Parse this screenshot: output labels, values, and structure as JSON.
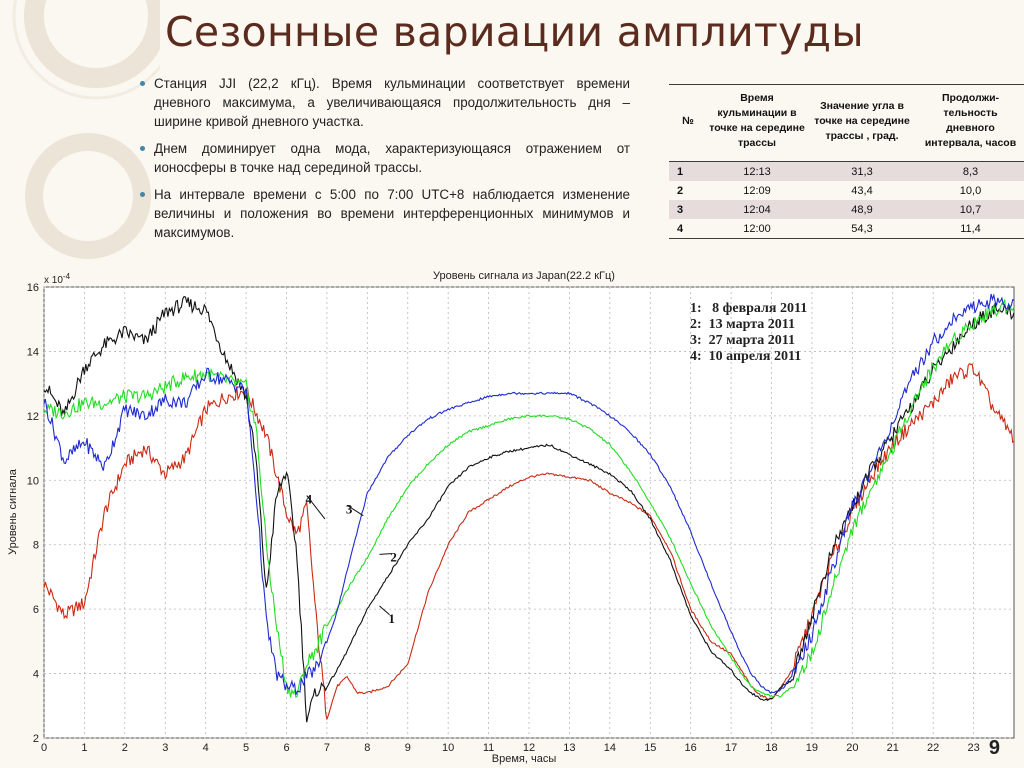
{
  "slide": {
    "title": "Сезонные вариации амплитуды",
    "page_number": "9",
    "accent_color": "#5b2b1e",
    "bullet_color": "#3f88a9"
  },
  "bullets": [
    "Станция JJI (22,2 кГц). Время кульминации соответствует времени дневного максимума, а увеличивающаяся продолжительность дня – ширине кривой дневного участка.",
    "Днем доминирует одна мода, характеризующаяся отражением от ионосферы в точке над серединой трассы.",
    "На интервале времени с 5:00 по 7:00 UTC+8 наблюдается изменение величины и положения во времени интерференционных минимумов и максимумов."
  ],
  "table": {
    "headers": [
      "№",
      "Время кульминации в точке на середине трассы",
      "Значение угла в точке на середине трассы , град.",
      "Продолжи-тельность дневного интервала, часов"
    ],
    "rows": [
      [
        "1",
        "12:13",
        "31,3",
        "8,3"
      ],
      [
        "2",
        "12:09",
        "43,4",
        "10,0"
      ],
      [
        "3",
        "12:04",
        "48,9",
        "10,7"
      ],
      [
        "4",
        "12:00",
        "54,3",
        "11,4"
      ]
    ]
  },
  "chart_data": {
    "type": "line",
    "title": "Уровень сигнала из Japan(22.2 кГц)",
    "xlabel": "Время, часы",
    "ylabel": "Уровень сигнала",
    "y_multiplier": "x 10",
    "y_exponent": "-4",
    "xlim": [
      0,
      24
    ],
    "ylim": [
      2,
      16
    ],
    "xticks": [
      0,
      1,
      2,
      3,
      4,
      5,
      6,
      7,
      8,
      9,
      10,
      11,
      12,
      13,
      14,
      15,
      16,
      17,
      18,
      19,
      20,
      21,
      22,
      23
    ],
    "yticks": [
      2,
      4,
      6,
      8,
      10,
      12,
      14,
      16
    ],
    "grid": true,
    "legend": [
      "1:   8 февраля 2011",
      "2:  13 марта 2011",
      "3:  27 марта 2011",
      "4:  10 апреля 2011"
    ],
    "series": [
      {
        "name": "1",
        "color": "#cc2a14",
        "x": [
          0,
          0.5,
          1,
          1.5,
          2,
          2.5,
          3,
          3.5,
          4,
          4.5,
          5,
          5.5,
          6,
          6.25,
          6.5,
          6.75,
          7,
          7.25,
          7.5,
          7.75,
          8,
          8.25,
          8.5,
          9,
          9.5,
          10,
          10.5,
          11,
          11.5,
          12,
          12.5,
          13,
          13.5,
          14,
          14.5,
          15,
          15.5,
          16,
          16.5,
          17,
          17.25,
          17.5,
          17.75,
          18,
          18.25,
          18.5,
          19,
          19.5,
          20,
          20.5,
          21,
          21.5,
          22,
          22.5,
          23,
          23.5,
          24
        ],
        "y": [
          6.8,
          5.8,
          6.2,
          9.0,
          10.5,
          11.0,
          10.2,
          10.7,
          12.2,
          12.6,
          12.8,
          11.4,
          9.0,
          8.3,
          9.2,
          5.5,
          2.6,
          3.6,
          3.9,
          3.4,
          3.4,
          3.5,
          3.6,
          4.3,
          6.5,
          8.0,
          9.0,
          9.4,
          9.8,
          10.1,
          10.2,
          10.1,
          10.0,
          9.6,
          9.3,
          8.9,
          7.8,
          6.0,
          5.0,
          4.6,
          4.1,
          3.6,
          3.3,
          3.2,
          3.6,
          4.1,
          5.8,
          7.6,
          9.0,
          10.2,
          11.1,
          11.8,
          12.4,
          13.2,
          13.5,
          12.2,
          11.3
        ]
      },
      {
        "name": "2",
        "color": "#111111",
        "x": [
          0,
          0.5,
          1,
          1.5,
          2,
          2.5,
          3,
          3.5,
          4,
          4.5,
          5,
          5.25,
          5.5,
          5.75,
          6,
          6.25,
          6.5,
          6.75,
          7,
          7.25,
          7.5,
          8,
          8.5,
          9,
          9.5,
          10,
          10.5,
          11,
          11.5,
          12,
          12.5,
          13,
          13.5,
          14,
          14.5,
          15,
          15.5,
          16,
          16.5,
          17,
          17.25,
          17.5,
          17.75,
          18,
          18.25,
          18.5,
          19,
          19.5,
          20,
          20.5,
          21,
          21.5,
          22,
          22.5,
          23,
          23.5,
          24
        ],
        "y": [
          13.0,
          12.0,
          13.5,
          14.2,
          14.6,
          14.3,
          15.2,
          15.5,
          15.3,
          13.8,
          12.6,
          10.6,
          6.5,
          9.5,
          10.3,
          7.8,
          2.6,
          3.5,
          3.6,
          4.1,
          4.7,
          6.0,
          7.0,
          8.0,
          8.8,
          9.8,
          10.4,
          10.7,
          10.9,
          11.0,
          11.1,
          10.8,
          10.5,
          10.2,
          9.7,
          8.8,
          7.5,
          5.8,
          4.7,
          4.1,
          3.7,
          3.4,
          3.2,
          3.2,
          3.6,
          3.8,
          5.8,
          7.8,
          9.2,
          10.4,
          11.4,
          12.4,
          13.4,
          14.2,
          14.9,
          15.3,
          15.2
        ]
      },
      {
        "name": "3",
        "color": "#22dd22",
        "x": [
          0,
          0.5,
          1,
          1.5,
          2,
          2.5,
          3,
          3.5,
          4,
          4.5,
          5,
          5.25,
          5.5,
          5.75,
          6,
          6.25,
          6.5,
          6.75,
          7,
          7.25,
          7.5,
          8,
          8.5,
          9,
          9.5,
          10,
          10.5,
          11,
          11.5,
          12,
          12.5,
          13,
          13.5,
          14,
          14.5,
          15,
          15.5,
          16,
          16.5,
          17,
          17.25,
          17.5,
          17.75,
          18,
          18.25,
          18.5,
          19,
          19.5,
          20,
          20.5,
          21,
          21.5,
          22,
          22.5,
          23,
          23.5,
          24
        ],
        "y": [
          12.2,
          12.1,
          12.4,
          12.4,
          12.6,
          12.6,
          12.9,
          13.2,
          13.3,
          13.1,
          12.9,
          11.6,
          8.0,
          5.5,
          3.6,
          3.3,
          4.3,
          4.8,
          5.5,
          6.0,
          6.6,
          7.6,
          8.8,
          9.8,
          10.5,
          11.1,
          11.5,
          11.7,
          11.9,
          12.0,
          12.0,
          11.9,
          11.6,
          11.1,
          10.3,
          9.3,
          8.2,
          6.8,
          5.5,
          4.5,
          4.0,
          3.6,
          3.4,
          3.3,
          3.3,
          3.6,
          4.6,
          6.6,
          8.5,
          9.8,
          11.0,
          12.4,
          13.5,
          14.4,
          14.9,
          15.3,
          15.5
        ]
      },
      {
        "name": "4",
        "color": "#1f2bd0",
        "x": [
          0,
          0.5,
          1,
          1.5,
          2,
          2.5,
          3,
          3.5,
          4,
          4.5,
          5,
          5.25,
          5.5,
          5.75,
          6,
          6.25,
          6.5,
          6.75,
          7,
          7.25,
          7.5,
          8,
          8.5,
          9,
          9.5,
          10,
          10.5,
          11,
          11.5,
          12,
          12.5,
          13,
          13.5,
          14,
          14.5,
          15,
          15.5,
          16,
          16.5,
          17,
          17.25,
          17.5,
          17.75,
          18,
          18.25,
          18.5,
          19,
          19.5,
          20,
          20.5,
          21,
          21.5,
          22,
          22.5,
          23,
          23.5,
          24
        ],
        "y": [
          12.5,
          10.6,
          11.2,
          10.4,
          12.2,
          12.0,
          12.5,
          12.4,
          13.3,
          13.1,
          12.8,
          9.6,
          5.6,
          4.0,
          3.6,
          3.5,
          3.9,
          4.2,
          5.0,
          5.9,
          7.2,
          9.6,
          10.7,
          11.4,
          11.9,
          12.2,
          12.4,
          12.6,
          12.7,
          12.7,
          12.7,
          12.7,
          12.4,
          12.0,
          11.5,
          10.8,
          9.8,
          8.4,
          6.8,
          5.3,
          4.6,
          4.0,
          3.6,
          3.4,
          3.5,
          3.9,
          5.2,
          7.2,
          9.2,
          10.4,
          11.8,
          13.2,
          14.3,
          15.0,
          15.4,
          15.6,
          15.4
        ]
      }
    ],
    "annotations": [
      {
        "text": "1",
        "x": 8.6,
        "y": 5.7,
        "tip_x": 8.3,
        "tip_y": 6.1
      },
      {
        "text": "2",
        "x": 8.65,
        "y": 7.6,
        "tip_x": 8.3,
        "tip_y": 7.7
      },
      {
        "text": "3",
        "x": 7.55,
        "y": 9.1,
        "tip_x": 7.9,
        "tip_y": 8.9
      },
      {
        "text": "4",
        "x": 6.55,
        "y": 9.4,
        "tip_x": 6.95,
        "tip_y": 8.8
      }
    ]
  }
}
